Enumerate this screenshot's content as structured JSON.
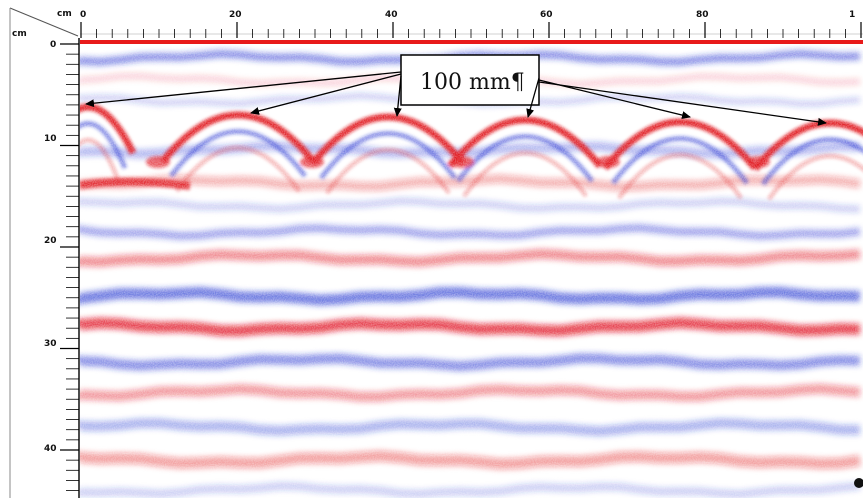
{
  "axes": {
    "horizontal_unit": "cm",
    "vertical_unit": "cm",
    "horizontal_ticks": [
      "0",
      "20",
      "40",
      "60",
      "80",
      "1"
    ],
    "vertical_ticks": [
      "0",
      "10",
      "20",
      "30",
      "40"
    ]
  },
  "callout": {
    "label": "100 mm¶"
  },
  "colors": {
    "positive_reflection": "#e0141e",
    "negative_reflection": "#1f2fd0",
    "surface_line": "#e81a1a",
    "background": "#ffffff"
  }
}
